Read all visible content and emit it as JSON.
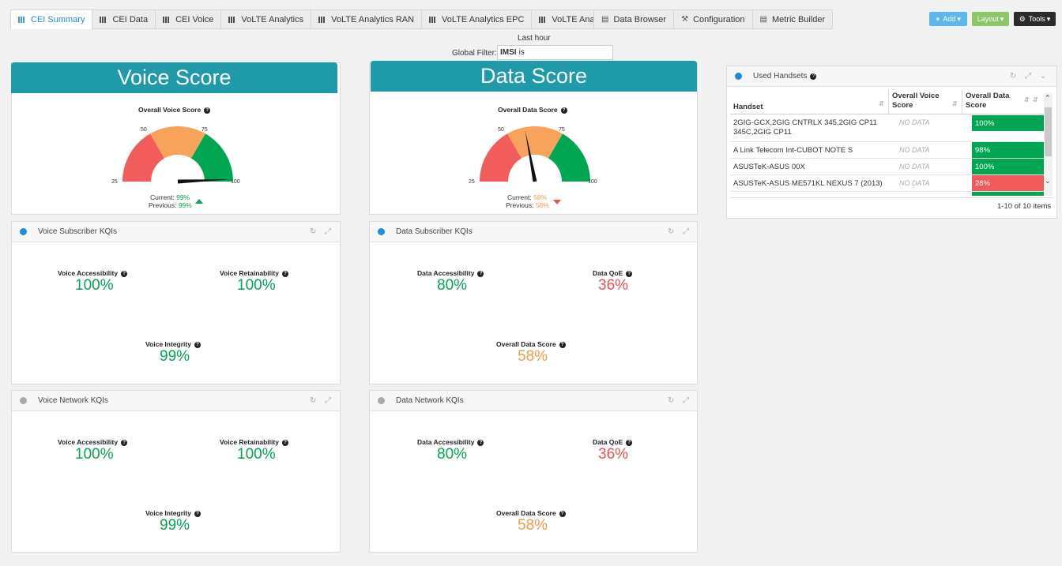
{
  "tabs": [
    {
      "label": "CEI Summary",
      "active": true
    },
    {
      "label": "CEI Data"
    },
    {
      "label": "CEI Voice"
    },
    {
      "label": "VoLTE Analytics"
    },
    {
      "label": "VoLTE Analytics RAN"
    },
    {
      "label": "VoLTE Analytics EPC"
    },
    {
      "label": "VoLTE Analytics IMS"
    }
  ],
  "tab_plus": "+",
  "tabs2": [
    {
      "label": "Data Browser",
      "icon": "chart-icon"
    },
    {
      "label": "Configuration",
      "icon": "wrench-icon"
    },
    {
      "label": "Metric Builder",
      "icon": "chart-icon"
    }
  ],
  "buttons": {
    "add": "Add",
    "layout": "Layout",
    "tools": "Tools"
  },
  "filter": {
    "time": "Last hour",
    "label": "Global Filter:",
    "field": "IMSI",
    "op": "is"
  },
  "voice": {
    "banner": "Voice Score",
    "gauge_title": "Overall Voice Score",
    "ticks": [
      "25",
      "50",
      "75",
      "100"
    ],
    "current_label": "Current:",
    "current": "99%",
    "previous_label": "Previous:",
    "previous": "99%",
    "value": 99
  },
  "data": {
    "banner": "Data Score",
    "gauge_title": "Overall Data Score",
    "ticks": [
      "25",
      "50",
      "75",
      "100"
    ],
    "current_label": "Current:",
    "current": "58%",
    "previous_label": "Previous:",
    "previous": "58%",
    "value": 58
  },
  "voice_sub": {
    "title": "Voice Subscriber KQIs",
    "kqis": [
      {
        "label": "Voice Accessibility",
        "value": "100%"
      },
      {
        "label": "Voice Retainability",
        "value": "100%"
      },
      {
        "label": "Voice Integrity",
        "value": "99%"
      }
    ]
  },
  "data_sub": {
    "title": "Data Subscriber KQIs",
    "kqis": [
      {
        "label": "Data Accessibility",
        "value": "80%"
      },
      {
        "label": "Data QoE",
        "value": "36%"
      },
      {
        "label": "Overall Data Score",
        "value": "58%"
      }
    ]
  },
  "voice_net": {
    "title": "Voice Network KQIs",
    "kqis": [
      {
        "label": "Voice Accessibility",
        "value": "100%"
      },
      {
        "label": "Voice Retainability",
        "value": "100%"
      },
      {
        "label": "Voice Integrity",
        "value": "99%"
      }
    ]
  },
  "data_net": {
    "title": "Data Network KQIs",
    "kqis": [
      {
        "label": "Data Accessibility",
        "value": "80%"
      },
      {
        "label": "Data QoE",
        "value": "36%"
      },
      {
        "label": "Overall Data Score",
        "value": "58%"
      }
    ]
  },
  "handsets": {
    "title": "Used Handsets",
    "columns": [
      "Handset",
      "Overall Voice Score",
      "Overall Data Score"
    ],
    "rows": [
      {
        "handset": "2GIG-GCX,2GIG CNTRLX 345,2GIG CP11 345C,2GIG CP11",
        "voice": "NO DATA",
        "data": "100%"
      },
      {
        "handset": "A Link Telecom Int-CUBOT NOTE S",
        "voice": "NO DATA",
        "data": "98%"
      },
      {
        "handset": "ASUSTeK-ASUS 00X",
        "voice": "NO DATA",
        "data": "100%"
      },
      {
        "handset": "ASUSTeK-ASUS ME571KL NEXUS 7 (2013)",
        "voice": "NO DATA",
        "data": "28%"
      }
    ],
    "footer": "1-10 of 10 items"
  },
  "colors": {
    "good": "#00a651",
    "warn": "#f7a35c",
    "bad": "#f25c5c",
    "banner": "#1e9aa8"
  }
}
